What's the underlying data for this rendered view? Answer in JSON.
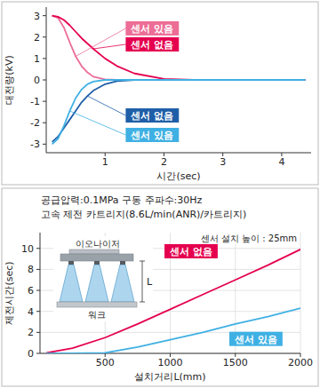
{
  "chart_data": [
    {
      "type": "line",
      "x_label": "시간(sec)",
      "y_label": "대전량(kV)",
      "x": [
        0.1,
        0.2,
        0.3,
        0.4,
        0.5,
        0.6,
        0.7,
        0.8,
        1.0,
        1.2,
        1.5,
        2.0,
        2.5,
        3.0,
        3.5,
        4.0,
        4.4
      ],
      "xlim": [
        0,
        4.5
      ],
      "xticks": [
        1,
        2,
        3,
        4
      ],
      "ylim": [
        -3.4,
        3.4
      ],
      "yticks": [
        -3,
        -2,
        -1,
        0,
        1,
        2,
        3
      ],
      "grid": false,
      "series": [
        {
          "name": "센서 있음",
          "color": "#ec6d96",
          "values": [
            3,
            2.9,
            2.45,
            1.75,
            1.1,
            0.65,
            0.35,
            0.15,
            0.03,
            0,
            0,
            0,
            0,
            0,
            0,
            0,
            0
          ]
        },
        {
          "name": "센서 없음",
          "color": "#e5004f",
          "values": [
            3,
            2.95,
            2.8,
            2.55,
            2.25,
            1.95,
            1.7,
            1.45,
            1.0,
            0.65,
            0.3,
            0.05,
            0,
            0,
            0,
            0,
            0
          ]
        },
        {
          "name": "센서 없음",
          "color": "#1f5fa8",
          "values": [
            -2.9,
            -2.65,
            -2.25,
            -1.85,
            -1.45,
            -1.05,
            -0.75,
            -0.5,
            -0.2,
            -0.06,
            0,
            0,
            0,
            0,
            0,
            0,
            0
          ]
        },
        {
          "name": "센서 있음",
          "color": "#3fb0e3",
          "values": [
            -3,
            -2.75,
            -2.15,
            -1.45,
            -0.85,
            -0.45,
            -0.2,
            -0.08,
            0,
            0,
            0,
            0,
            0,
            0,
            0,
            0,
            0
          ]
        }
      ]
    },
    {
      "type": "line",
      "title": "공급압력:0.1MPa  구동 주파수:30Hz",
      "subtitle": "고속 제전 카트리지(8.6L/min(ANR)/카트리지)",
      "x_label": "설치거리L(mm)",
      "y_label": "제전시간(sec)",
      "annotations": [
        "센서 설치 높이 : 25mm",
        "이오나이저",
        "워크",
        "L"
      ],
      "x": [
        50,
        250,
        500,
        750,
        1000,
        1250,
        1500,
        1750,
        2000
      ],
      "xlim": [
        0,
        2000
      ],
      "xticks": [
        500,
        1000,
        1500,
        2000
      ],
      "ylim": [
        0,
        11.5
      ],
      "yticks": [
        0,
        2,
        4,
        6,
        8,
        10
      ],
      "grid": true,
      "series": [
        {
          "name": "센서 없음",
          "color": "#e5004f",
          "values": [
            0.05,
            0.5,
            1.5,
            2.8,
            4.2,
            5.6,
            7.0,
            8.4,
            9.9
          ]
        },
        {
          "name": "센서 있음",
          "color": "#3fb0e3",
          "values": [
            0,
            0,
            0.05,
            0.6,
            1.3,
            2.0,
            2.8,
            3.5,
            4.3
          ]
        }
      ]
    }
  ]
}
